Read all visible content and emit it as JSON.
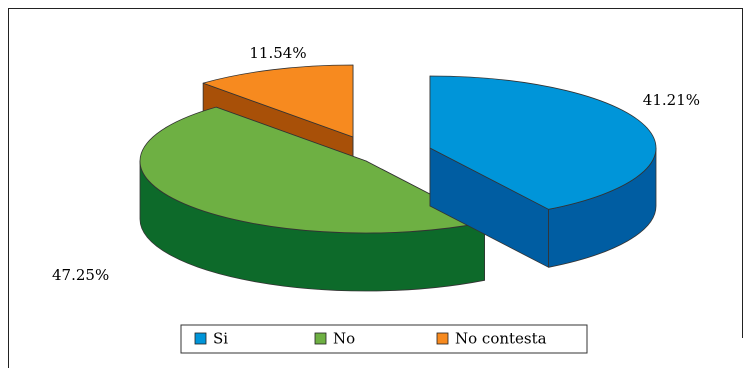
{
  "chart_data": {
    "type": "pie",
    "title": "",
    "style": "3d-exploded",
    "slices": [
      {
        "name": "Si",
        "value": 41.21,
        "label": "41.21%",
        "color": "#0095d9",
        "side_color": "#005da2"
      },
      {
        "name": "No",
        "value": 47.25,
        "label": "47.25%",
        "color": "#6eb043",
        "side_color": "#0d6a2a"
      },
      {
        "name": "No contesta",
        "value": 11.54,
        "label": "11.54%",
        "color": "#f78a1f",
        "side_color": "#a85008"
      }
    ],
    "legend": {
      "placement": "bottom-center",
      "items": [
        "Si",
        "No",
        "No contesta"
      ]
    }
  }
}
